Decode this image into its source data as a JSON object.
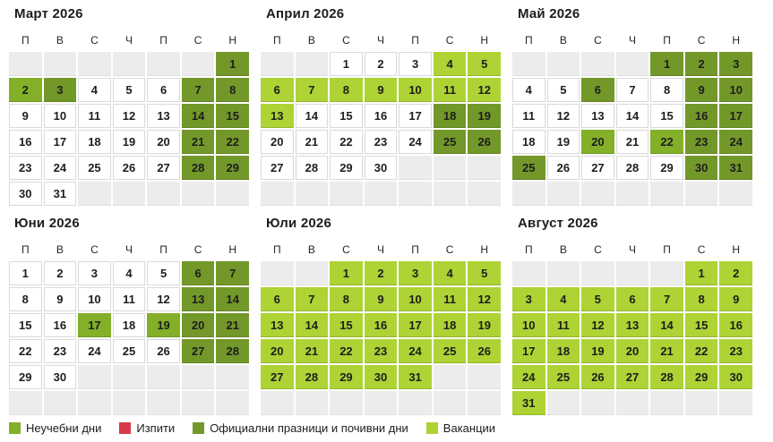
{
  "weekdays": [
    "П",
    "В",
    "С",
    "Ч",
    "П",
    "С",
    "Н"
  ],
  "type_codes": {
    "-": "empty",
    "": "school",
    "n": "nonschool",
    "h": "holiday",
    "v": "vacation",
    "x": "exam"
  },
  "colors": {
    "nonschool": "#83af29",
    "exam": "#d93a4a",
    "holiday": "#73982a",
    "vacation": "#add334",
    "empty_cell": "#ececec",
    "school_cell": "#ffffff",
    "cell_border": "#d9d9d9",
    "text": "#1d1d1b"
  },
  "months": [
    {
      "title": "Март 2026",
      "cells": [
        "-",
        "-",
        "-",
        "-",
        "-",
        "-",
        "1h",
        "2n",
        "3h",
        "4",
        "5",
        "6",
        "7h",
        "8h",
        "9",
        "10",
        "11",
        "12",
        "13",
        "14h",
        "15h",
        "16",
        "17",
        "18",
        "19",
        "20",
        "21h",
        "22h",
        "23",
        "24",
        "25",
        "26",
        "27",
        "28h",
        "29h",
        "30",
        "31",
        "-",
        "-",
        "-",
        "-",
        "-"
      ]
    },
    {
      "title": "Април 2026",
      "cells": [
        "-",
        "-",
        "1",
        "2",
        "3",
        "4v",
        "5v",
        "6v",
        "7v",
        "8v",
        "9v",
        "10v",
        "11v",
        "12v",
        "13v",
        "14",
        "15",
        "16",
        "17",
        "18h",
        "19h",
        "20",
        "21",
        "22",
        "23",
        "24",
        "25h",
        "26h",
        "27",
        "28",
        "29",
        "30",
        "-",
        "-",
        "-",
        "-",
        "-",
        "-",
        "-",
        "-",
        "-",
        "-"
      ]
    },
    {
      "title": "Май 2026",
      "cells": [
        "-",
        "-",
        "-",
        "-",
        "1h",
        "2h",
        "3h",
        "4",
        "5",
        "6h",
        "7",
        "8",
        "9h",
        "10h",
        "11",
        "12",
        "13",
        "14",
        "15",
        "16h",
        "17h",
        "18",
        "19",
        "20n",
        "21",
        "22n",
        "23h",
        "24h",
        "25h",
        "26",
        "27",
        "28",
        "29",
        "30h",
        "31h",
        "-",
        "-",
        "-",
        "-",
        "-",
        "-",
        "-"
      ]
    },
    {
      "title": "Юни 2026",
      "cells": [
        "1",
        "2",
        "3",
        "4",
        "5",
        "6h",
        "7h",
        "8",
        "9",
        "10",
        "11",
        "12",
        "13h",
        "14h",
        "15",
        "16",
        "17n",
        "18",
        "19n",
        "20h",
        "21h",
        "22",
        "23",
        "24",
        "25",
        "26",
        "27h",
        "28h",
        "29",
        "30",
        "-",
        "-",
        "-",
        "-",
        "-",
        "-",
        "-",
        "-",
        "-",
        "-",
        "-",
        "-"
      ]
    },
    {
      "title": "Юли 2026",
      "cells": [
        "-",
        "-",
        "1v",
        "2v",
        "3v",
        "4v",
        "5v",
        "6v",
        "7v",
        "8v",
        "9v",
        "10v",
        "11v",
        "12v",
        "13v",
        "14v",
        "15v",
        "16v",
        "17v",
        "18v",
        "19v",
        "20v",
        "21v",
        "22v",
        "23v",
        "24v",
        "25v",
        "26v",
        "27v",
        "28v",
        "29v",
        "30v",
        "31v",
        "-",
        "-",
        "-",
        "-",
        "-",
        "-",
        "-",
        "-",
        "-"
      ]
    },
    {
      "title": "Август 2026",
      "cells": [
        "-",
        "-",
        "-",
        "-",
        "-",
        "1v",
        "2v",
        "3v",
        "4v",
        "5v",
        "6v",
        "7v",
        "8v",
        "9v",
        "10v",
        "11v",
        "12v",
        "13v",
        "14v",
        "15v",
        "16v",
        "17v",
        "18v",
        "19v",
        "20v",
        "21v",
        "22v",
        "23v",
        "24v",
        "25v",
        "26v",
        "27v",
        "28v",
        "29v",
        "30v",
        "31v",
        "-",
        "-",
        "-",
        "-",
        "-",
        "-"
      ]
    }
  ],
  "legend": [
    {
      "label": "Неучебни дни",
      "type": "nonschool"
    },
    {
      "label": "Изпити",
      "type": "exam"
    },
    {
      "label": "Официални празници и почивни дни",
      "type": "holiday"
    },
    {
      "label": "Ваканции",
      "type": "vacation"
    }
  ]
}
